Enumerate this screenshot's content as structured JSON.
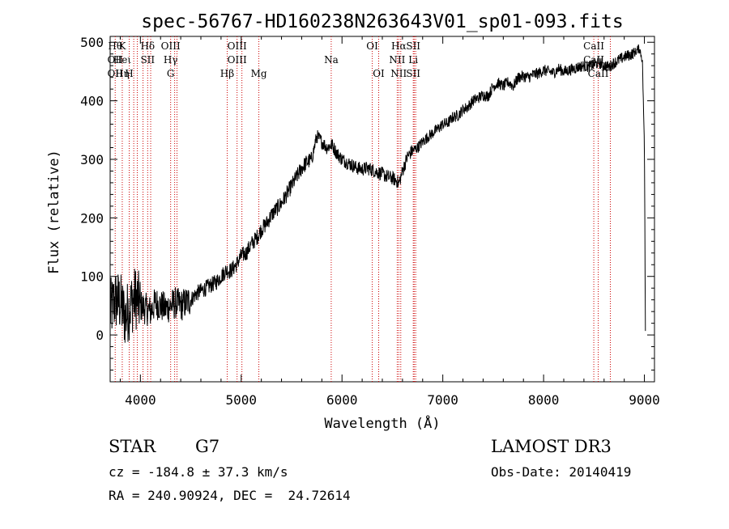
{
  "chart_data": {
    "type": "line",
    "title": "spec-56767-HD160238N263643V01_sp01-093.fits",
    "xlabel": "Wavelength (Å)",
    "ylabel": "Flux (relative)",
    "xlim": [
      3700,
      9100
    ],
    "ylim": [
      -80,
      510
    ],
    "xticks": [
      4000,
      5000,
      6000,
      7000,
      8000,
      9000
    ],
    "yticks": [
      0,
      100,
      200,
      300,
      400,
      500
    ],
    "grid": false,
    "series": [
      {
        "color": "#000000",
        "x": [
          3700,
          3750,
          3800,
          3850,
          3900,
          3950,
          4000,
          4050,
          4100,
          4150,
          4200,
          4250,
          4300,
          4350,
          4400,
          4450,
          4500,
          4550,
          4600,
          4650,
          4700,
          4750,
          4800,
          4850,
          4900,
          4950,
          5000,
          5050,
          5100,
          5150,
          5200,
          5250,
          5300,
          5350,
          5400,
          5450,
          5500,
          5550,
          5600,
          5650,
          5700,
          5750,
          5800,
          5850,
          5900,
          5950,
          6000,
          6050,
          6100,
          6150,
          6200,
          6250,
          6300,
          6350,
          6400,
          6450,
          6500,
          6550,
          6563,
          6600,
          6650,
          6700,
          6750,
          6800,
          6850,
          6900,
          6950,
          7000,
          7050,
          7100,
          7150,
          7200,
          7250,
          7300,
          7350,
          7400,
          7450,
          7500,
          7550,
          7600,
          7650,
          7700,
          7750,
          7800,
          7850,
          7900,
          7950,
          8000,
          8050,
          8100,
          8150,
          8200,
          8250,
          8300,
          8350,
          8400,
          8450,
          8500,
          8550,
          8600,
          8650,
          8700,
          8750,
          8800,
          8850,
          8900,
          8950,
          8980,
          9000,
          9010
        ],
        "y": [
          40,
          60,
          55,
          30,
          50,
          65,
          50,
          45,
          40,
          55,
          50,
          45,
          50,
          55,
          50,
          55,
          60,
          70,
          75,
          80,
          85,
          90,
          100,
          110,
          110,
          120,
          135,
          140,
          155,
          165,
          180,
          190,
          205,
          215,
          225,
          240,
          255,
          270,
          285,
          295,
          300,
          340,
          330,
          320,
          325,
          310,
          300,
          295,
          290,
          285,
          283,
          285,
          282,
          278,
          275,
          270,
          268,
          262,
          258,
          280,
          305,
          315,
          320,
          330,
          338,
          345,
          352,
          360,
          362,
          372,
          375,
          385,
          390,
          400,
          405,
          410,
          408,
          425,
          430,
          425,
          432,
          425,
          440,
          442,
          440,
          445,
          447,
          452,
          450,
          448,
          455,
          450,
          452,
          455,
          458,
          460,
          458,
          462,
          465,
          460,
          458,
          465,
          470,
          475,
          478,
          482,
          490,
          470,
          320,
          10
        ]
      }
    ],
    "lines": [
      {
        "x": 3750,
        "labels": [
          "Hθ",
          "OII",
          "OII"
        ]
      },
      {
        "x": 3820,
        "labels": [
          "K",
          "Heι",
          "Hη"
        ]
      },
      {
        "x": 3889,
        "labels": [
          "",
          "",
          "H"
        ]
      },
      {
        "x": 3934,
        "labels": [
          "",
          "",
          ""
        ]
      },
      {
        "x": 3969,
        "labels": [
          "",
          "",
          ""
        ]
      },
      {
        "x": 4026,
        "labels": [
          "",
          "",
          ""
        ]
      },
      {
        "x": 4072,
        "labels": [
          "Hδ",
          "SII",
          ""
        ]
      },
      {
        "x": 4102,
        "labels": [
          "",
          "",
          ""
        ]
      },
      {
        "x": 4300,
        "labels": [
          "OIII",
          "Hγ",
          "G"
        ]
      },
      {
        "x": 4340,
        "labels": [
          "",
          "",
          ""
        ]
      },
      {
        "x": 4363,
        "labels": [
          "",
          "",
          ""
        ]
      },
      {
        "x": 4861,
        "labels": [
          "",
          "",
          "Hβ"
        ]
      },
      {
        "x": 4959,
        "labels": [
          "OIII",
          "OIII",
          ""
        ]
      },
      {
        "x": 5007,
        "labels": [
          "",
          "",
          ""
        ]
      },
      {
        "x": 5175,
        "labels": [
          "",
          "",
          "Mg"
        ]
      },
      {
        "x": 5893,
        "labels": [
          "",
          "Na",
          ""
        ]
      },
      {
        "x": 6300,
        "labels": [
          "OI",
          "",
          ""
        ]
      },
      {
        "x": 6364,
        "labels": [
          "",
          "",
          "OI"
        ]
      },
      {
        "x": 6548,
        "labels": [
          "",
          "NII",
          ""
        ]
      },
      {
        "x": 6563,
        "labels": [
          "Hα",
          "",
          "NII"
        ]
      },
      {
        "x": 6583,
        "labels": [
          "",
          "",
          ""
        ]
      },
      {
        "x": 6707,
        "labels": [
          "SII",
          "Li",
          "SII"
        ]
      },
      {
        "x": 6716,
        "labels": [
          "",
          "",
          ""
        ]
      },
      {
        "x": 6731,
        "labels": [
          "",
          "",
          ""
        ]
      },
      {
        "x": 8498,
        "labels": [
          "CaII",
          "CaII",
          ""
        ]
      },
      {
        "x": 8542,
        "labels": [
          "",
          "",
          "CaII"
        ]
      },
      {
        "x": 8662,
        "labels": [
          "",
          "",
          ""
        ]
      }
    ]
  },
  "info": {
    "object_class": "STAR",
    "subclass": "G7",
    "survey": "LAMOST DR3",
    "redshift_text": "cz = -184.8 ± 37.3 km/s",
    "obs_date_text": "Obs-Date: 20140419",
    "coords_text": "RA = 240.90924, DEC =  24.72614"
  }
}
